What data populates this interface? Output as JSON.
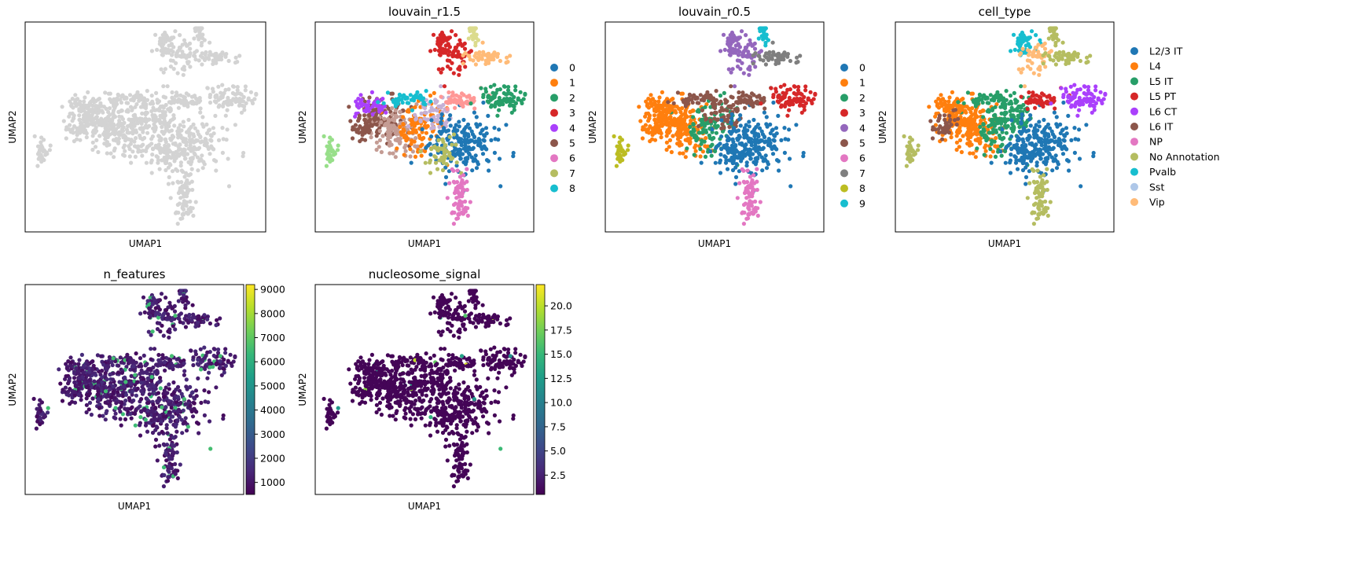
{
  "chart_data": [
    {
      "type": "scatter",
      "title": "",
      "xlabel": "UMAP1",
      "ylabel": "UMAP2",
      "color": "#d3d3d3",
      "grid": false,
      "legend": null
    },
    {
      "type": "scatter",
      "title": "louvain_r1.5",
      "xlabel": "UMAP1",
      "ylabel": "UMAP2",
      "grid": false,
      "legend_placement": "right",
      "categories": [
        "0",
        "1",
        "2",
        "3",
        "4",
        "5",
        "6",
        "7",
        "8"
      ],
      "colors": [
        "#1f77b4",
        "#ff7f0e",
        "#279e68",
        "#d62728",
        "#aa40fc",
        "#8c564b",
        "#e377c2",
        "#b5bd61",
        "#17becf"
      ],
      "extra_cluster_colors": [
        "#aec7e8",
        "#ffbb78",
        "#98df8a",
        "#ff9896",
        "#c5b0d5",
        "#c49c94",
        "#f7b6d2",
        "#dbdb8d"
      ]
    },
    {
      "type": "scatter",
      "title": "louvain_r0.5",
      "xlabel": "UMAP1",
      "ylabel": "UMAP2",
      "grid": false,
      "legend_placement": "right",
      "categories": [
        "0",
        "1",
        "2",
        "3",
        "4",
        "5",
        "6",
        "7",
        "8",
        "9"
      ],
      "colors": [
        "#1f77b4",
        "#ff7f0e",
        "#279e68",
        "#d62728",
        "#9467bd",
        "#8c564b",
        "#e377c2",
        "#7f7f7f",
        "#bcbd22",
        "#17becf"
      ]
    },
    {
      "type": "scatter",
      "title": "cell_type",
      "xlabel": "UMAP1",
      "ylabel": "UMAP2",
      "grid": false,
      "legend_placement": "right",
      "categories": [
        "L2/3 IT",
        "L4",
        "L5 IT",
        "L5 PT",
        "L6 CT",
        "L6 IT",
        "NP",
        "No Annotation",
        "Pvalb",
        "Sst",
        "Vip"
      ],
      "colors": [
        "#1f77b4",
        "#ff7f0e",
        "#279e68",
        "#d62728",
        "#aa40fc",
        "#8c564b",
        "#e377c2",
        "#b5bd61",
        "#17becf",
        "#aec7e8",
        "#ffbb78"
      ]
    },
    {
      "type": "scatter",
      "title": "n_features",
      "xlabel": "UMAP1",
      "ylabel": "UMAP2",
      "grid": false,
      "colorbar": {
        "colormap": "viridis",
        "range": [
          500,
          9200
        ],
        "ticks": [
          "1000",
          "2000",
          "3000",
          "4000",
          "5000",
          "6000",
          "7000",
          "8000",
          "9000"
        ],
        "tick_values": [
          1000,
          2000,
          3000,
          4000,
          5000,
          6000,
          7000,
          8000,
          9000
        ]
      }
    },
    {
      "type": "scatter",
      "title": "nucleosome_signal",
      "xlabel": "UMAP1",
      "ylabel": "UMAP2",
      "grid": false,
      "colorbar": {
        "colormap": "viridis",
        "range": [
          0.5,
          22.2
        ],
        "ticks": [
          "2.5",
          "5.0",
          "7.5",
          "10.0",
          "12.5",
          "15.0",
          "17.5",
          "20.0"
        ],
        "tick_values": [
          2.5,
          5.0,
          7.5,
          10.0,
          12.5,
          15.0,
          17.5,
          20.0
        ]
      }
    }
  ],
  "colormaps": {
    "viridis": [
      "#440154",
      "#482878",
      "#3e4989",
      "#31688e",
      "#26828e",
      "#1f9e89",
      "#35b779",
      "#6ece58",
      "#b5de2b",
      "#fde725"
    ]
  }
}
